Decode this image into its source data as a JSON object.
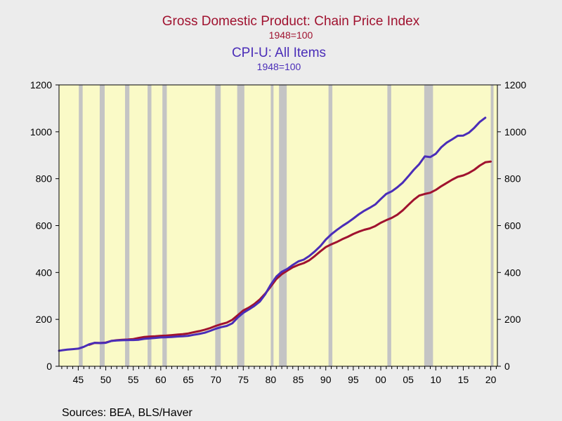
{
  "chart_data": {
    "type": "line",
    "title": "Gross Domestic Product: Chain Price Index",
    "title_base": "1948=100",
    "subtitle": "CPI-U: All Items",
    "subtitle_base": "1948=100",
    "source": "Sources:  BEA, BLS/Haver",
    "xlim": [
      1941.5,
      2021.2
    ],
    "ylim": [
      0,
      1200
    ],
    "yticks": [
      0,
      200,
      400,
      600,
      800,
      1000,
      1200
    ],
    "xticks": [
      {
        "year": 1945,
        "label": "45"
      },
      {
        "year": 1950,
        "label": "50"
      },
      {
        "year": 1955,
        "label": "55"
      },
      {
        "year": 1960,
        "label": "60"
      },
      {
        "year": 1965,
        "label": "65"
      },
      {
        "year": 1970,
        "label": "70"
      },
      {
        "year": 1975,
        "label": "75"
      },
      {
        "year": 1980,
        "label": "80"
      },
      {
        "year": 1985,
        "label": "85"
      },
      {
        "year": 1990,
        "label": "90"
      },
      {
        "year": 1995,
        "label": "95"
      },
      {
        "year": 2000,
        "label": "00"
      },
      {
        "year": 2005,
        "label": "05"
      },
      {
        "year": 2010,
        "label": "10"
      },
      {
        "year": 2015,
        "label": "15"
      },
      {
        "year": 2020,
        "label": "20"
      }
    ],
    "recessions": [
      [
        1945.1,
        1945.8
      ],
      [
        1948.9,
        1949.8
      ],
      [
        1953.5,
        1954.3
      ],
      [
        1957.6,
        1958.3
      ],
      [
        1960.3,
        1961.1
      ],
      [
        1969.9,
        1970.9
      ],
      [
        1973.9,
        1975.2
      ],
      [
        1980.0,
        1980.5
      ],
      [
        1981.5,
        1982.9
      ],
      [
        1990.5,
        1991.2
      ],
      [
        2001.2,
        2001.9
      ],
      [
        2007.9,
        2009.5
      ],
      [
        2020.0,
        2020.5
      ]
    ],
    "colors": {
      "gdp": "#a0122f",
      "cpi": "#4a2db8",
      "plot_bg": "#fafac7",
      "recession": "#c4c4c4"
    },
    "series": [
      {
        "name": "Gross Domestic Product: Chain Price Index",
        "color": "#a0122f",
        "x": [
          1947,
          1948,
          1949,
          1950,
          1951,
          1952,
          1953,
          1954,
          1955,
          1956,
          1957,
          1958,
          1959,
          1960,
          1961,
          1962,
          1963,
          1964,
          1965,
          1966,
          1967,
          1968,
          1969,
          1970,
          1971,
          1972,
          1973,
          1974,
          1975,
          1976,
          1977,
          1978,
          1979,
          1980,
          1981,
          1982,
          1983,
          1984,
          1985,
          1986,
          1987,
          1988,
          1989,
          1990,
          1991,
          1992,
          1993,
          1994,
          1995,
          1996,
          1997,
          1998,
          1999,
          2000,
          2001,
          2002,
          2003,
          2004,
          2005,
          2006,
          2007,
          2008,
          2009,
          2010,
          2011,
          2012,
          2013,
          2014,
          2015,
          2016,
          2017,
          2018,
          2019,
          2020
        ],
        "values": [
          92,
          100,
          99,
          101,
          108,
          111,
          113,
          114,
          116,
          121,
          125,
          127,
          128,
          130,
          131,
          133,
          135,
          137,
          140,
          145,
          150,
          156,
          163,
          172,
          180,
          186,
          198,
          218,
          238,
          250,
          265,
          285,
          310,
          340,
          372,
          393,
          408,
          422,
          432,
          440,
          452,
          470,
          490,
          508,
          520,
          530,
          542,
          552,
          564,
          574,
          582,
          588,
          598,
          612,
          623,
          633,
          646,
          665,
          688,
          710,
          728,
          735,
          740,
          752,
          768,
          782,
          796,
          808,
          814,
          824,
          838,
          856,
          870,
          873
        ]
      },
      {
        "name": "CPI-U: All Items",
        "color": "#4a2db8",
        "x": [
          1941.5,
          1942,
          1943,
          1944,
          1945,
          1946,
          1947,
          1948,
          1949,
          1950,
          1951,
          1952,
          1953,
          1954,
          1955,
          1956,
          1957,
          1958,
          1959,
          1960,
          1961,
          1962,
          1963,
          1964,
          1965,
          1966,
          1967,
          1968,
          1969,
          1970,
          1971,
          1972,
          1973,
          1974,
          1975,
          1976,
          1977,
          1978,
          1979,
          1980,
          1981,
          1982,
          1983,
          1984,
          1985,
          1986,
          1987,
          1988,
          1989,
          1990,
          1991,
          1992,
          1993,
          1994,
          1995,
          1996,
          1997,
          1998,
          1999,
          2000,
          2001,
          2002,
          2003,
          2004,
          2005,
          2006,
          2007,
          2008,
          2009,
          2010,
          2011,
          2012,
          2013,
          2014,
          2015,
          2016,
          2017,
          2018,
          2019
        ],
        "values": [
          66,
          68,
          71,
          73,
          75,
          83,
          94,
          100,
          99,
          100,
          108,
          110,
          111,
          112,
          112,
          113,
          117,
          119,
          121,
          123,
          124,
          125,
          127,
          128,
          130,
          134,
          138,
          143,
          151,
          160,
          167,
          172,
          183,
          208,
          228,
          242,
          257,
          276,
          307,
          348,
          382,
          403,
          415,
          432,
          447,
          455,
          470,
          490,
          512,
          540,
          563,
          581,
          598,
          613,
          630,
          648,
          663,
          676,
          690,
          713,
          735,
          746,
          763,
          783,
          810,
          838,
          862,
          895,
          892,
          906,
          934,
          954,
          968,
          983,
          984,
          996,
          1017,
          1042,
          1060
        ]
      }
    ]
  }
}
